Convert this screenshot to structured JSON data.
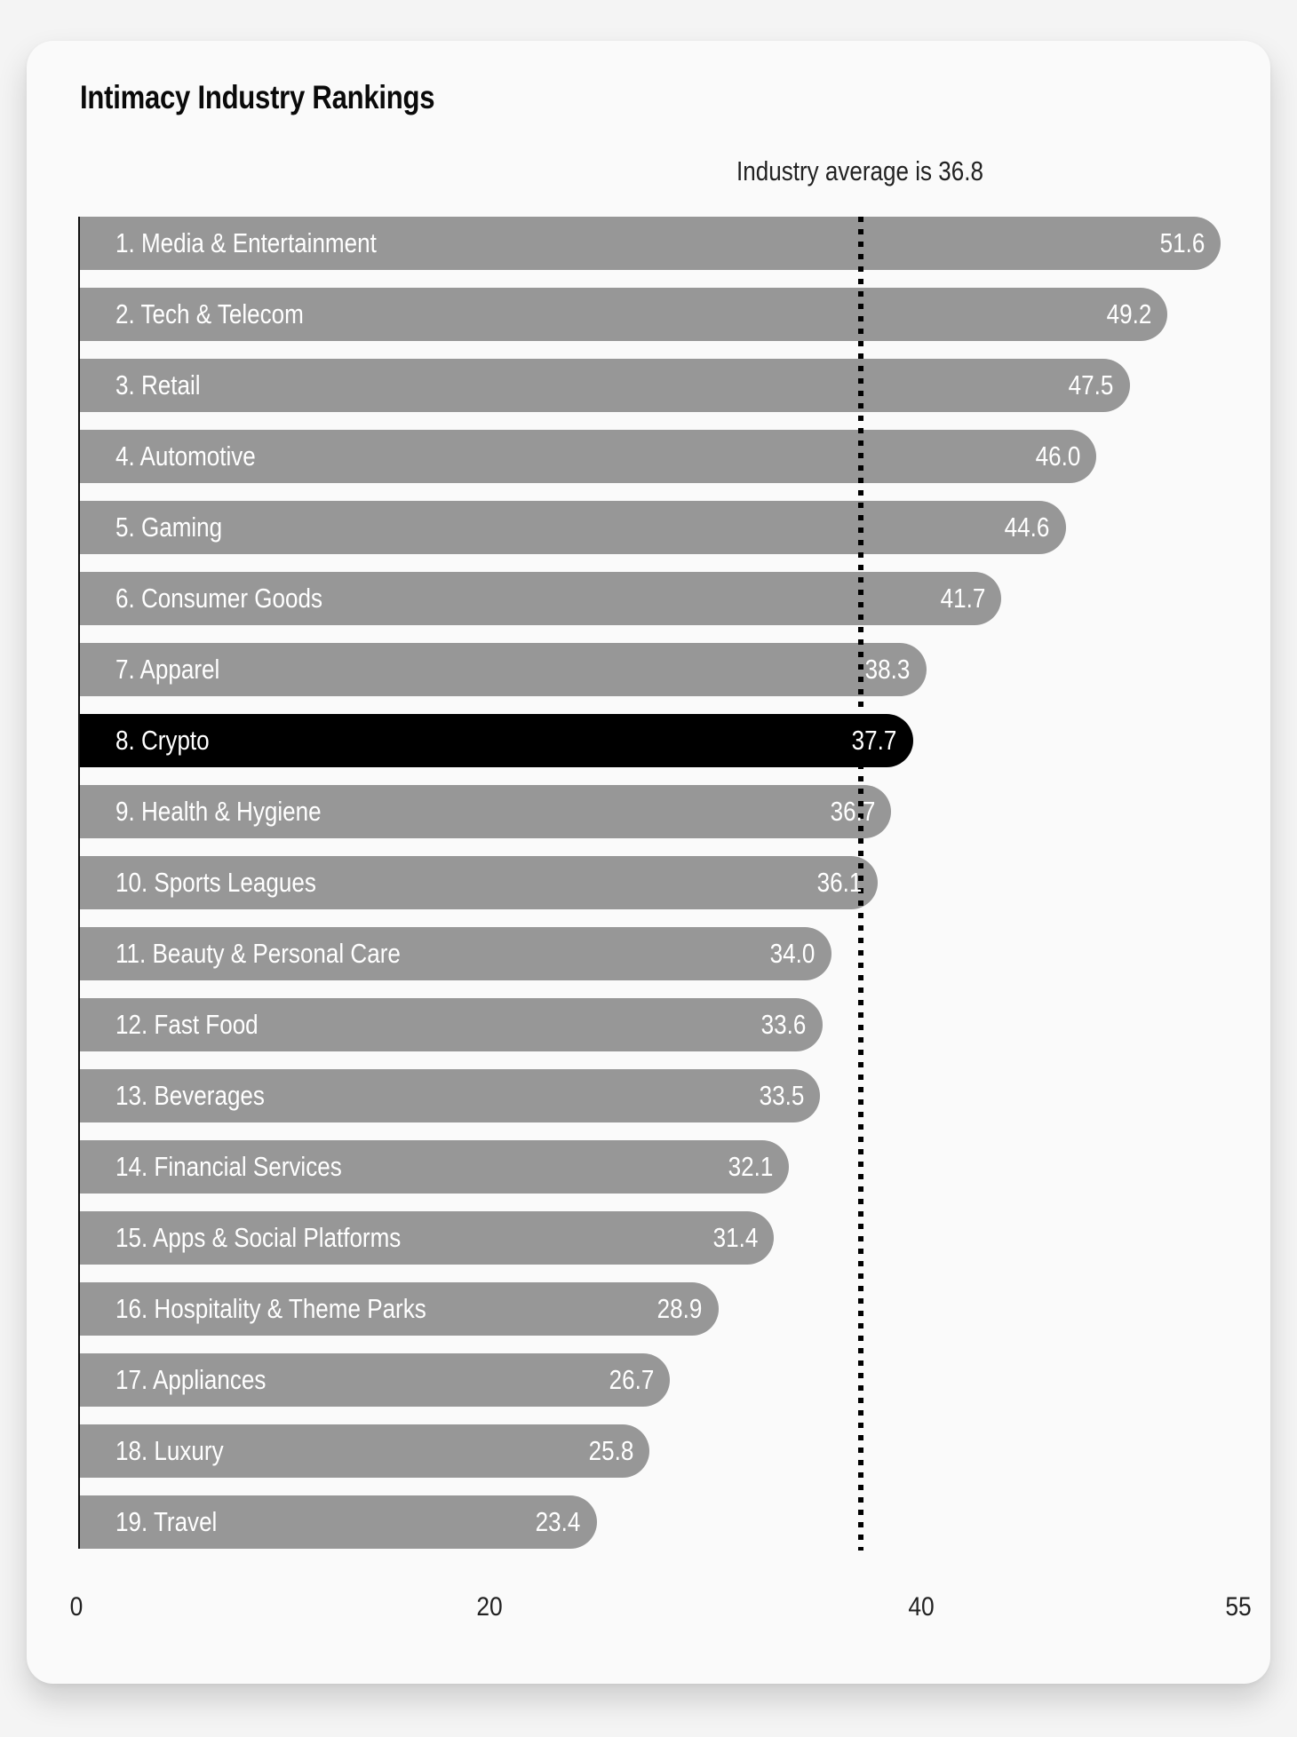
{
  "title": "Intimacy Industry Rankings",
  "average_label": "Industry average is 36.8",
  "colors": {
    "bar": "#979797",
    "highlight": "#000000",
    "card": "#fafafa",
    "page": "#f4f4f4"
  },
  "ticks": [
    "0",
    "20",
    "40",
    "55"
  ],
  "rows": [
    {
      "label": "1. Media & Entertainment",
      "value": "51.6"
    },
    {
      "label": "2. Tech & Telecom",
      "value": "49.2"
    },
    {
      "label": "3. Retail",
      "value": "47.5"
    },
    {
      "label": "4. Automotive",
      "value": "46.0"
    },
    {
      "label": "5. Gaming",
      "value": "44.6"
    },
    {
      "label": "6. Consumer Goods",
      "value": "41.7"
    },
    {
      "label": "7. Apparel",
      "value": "38.3"
    },
    {
      "label": "8. Crypto",
      "value": "37.7"
    },
    {
      "label": "9. Health & Hygiene",
      "value": "36.7"
    },
    {
      "label": "10. Sports Leagues",
      "value": "36.1"
    },
    {
      "label": "11. Beauty & Personal Care",
      "value": "34.0"
    },
    {
      "label": "12. Fast Food",
      "value": "33.6"
    },
    {
      "label": "13. Beverages",
      "value": "33.5"
    },
    {
      "label": "14. Financial Services",
      "value": "32.1"
    },
    {
      "label": "15. Apps & Social Platforms",
      "value": "31.4"
    },
    {
      "label": "16. Hospitality & Theme Parks",
      "value": "28.9"
    },
    {
      "label": "17. Appliances",
      "value": "26.7"
    },
    {
      "label": "18. Luxury",
      "value": "25.8"
    },
    {
      "label": "19. Travel",
      "value": "23.4"
    }
  ],
  "chart_data": {
    "type": "bar",
    "orientation": "horizontal",
    "title": "Intimacy Industry Rankings",
    "xlabel": "",
    "ylabel": "",
    "categories": [
      "Media & Entertainment",
      "Tech & Telecom",
      "Retail",
      "Automotive",
      "Gaming",
      "Consumer Goods",
      "Apparel",
      "Crypto",
      "Health & Hygiene",
      "Sports Leagues",
      "Beauty & Personal Care",
      "Fast Food",
      "Beverages",
      "Financial Services",
      "Apps & Social Platforms",
      "Hospitality & Theme Parks",
      "Appliances",
      "Luxury",
      "Travel"
    ],
    "values": [
      51.6,
      49.2,
      47.5,
      46.0,
      44.6,
      41.7,
      38.3,
      37.7,
      36.7,
      36.1,
      34.0,
      33.6,
      33.5,
      32.1,
      31.4,
      28.9,
      26.7,
      25.8,
      23.4
    ],
    "highlighted_category": "Crypto",
    "reference_line": {
      "value": 36.8,
      "label": "Industry average is 36.8",
      "style": "dotted"
    },
    "xlim": [
      0,
      55
    ],
    "xticks": [
      0,
      20,
      40,
      55
    ],
    "grid": false,
    "legend": "none"
  }
}
